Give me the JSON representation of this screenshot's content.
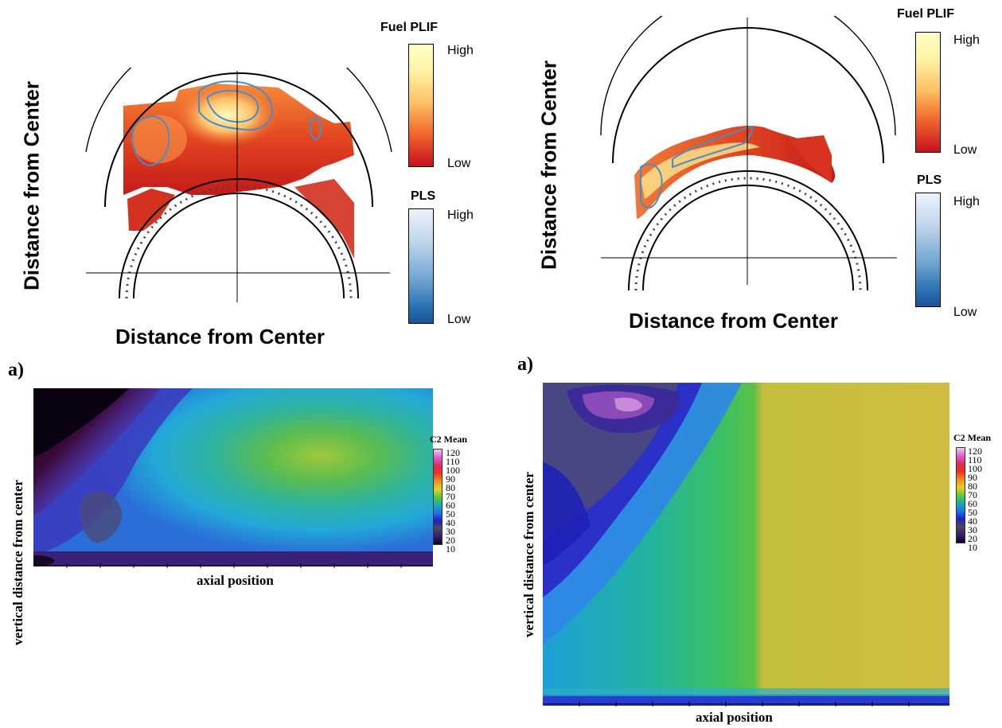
{
  "top_left": {
    "xlabel": "Distance from Center",
    "ylabel": "Distance from Center",
    "legend_fuel_title": "Fuel PLIF",
    "legend_fuel_high": "High",
    "legend_fuel_low": "Low",
    "legend_pls_title": "PLS",
    "legend_pls_high": "High",
    "legend_pls_low": "Low"
  },
  "top_right": {
    "xlabel": "Distance from Center",
    "ylabel": "Distance from Center",
    "legend_fuel_title": "Fuel PLIF",
    "legend_fuel_high": "High",
    "legend_fuel_low": "Low",
    "legend_pls_title": "PLS",
    "legend_pls_high": "High",
    "legend_pls_low": "Low"
  },
  "bottom_left": {
    "panel_letter": "a)",
    "xlabel": "axial position",
    "ylabel": "vertical distance from center",
    "colorbar_title": "C2  Mean",
    "colorbar_ticks": [
      "120",
      "110",
      "100",
      "90",
      "80",
      "70",
      "60",
      "50",
      "40",
      "30",
      "20",
      "10"
    ]
  },
  "bottom_right": {
    "panel_letter": "a)",
    "xlabel": "axial position",
    "ylabel": "vertical distance from center",
    "colorbar_title": "C2  Mean",
    "colorbar_ticks": [
      "120",
      "110",
      "100",
      "90",
      "80",
      "70",
      "60",
      "50",
      "40",
      "30",
      "20",
      "10"
    ]
  },
  "colors": {
    "fuel_high": "#ffffc4",
    "fuel_low": "#c8101e",
    "pls_high": "#eef3fb",
    "pls_low": "#1a5598"
  }
}
